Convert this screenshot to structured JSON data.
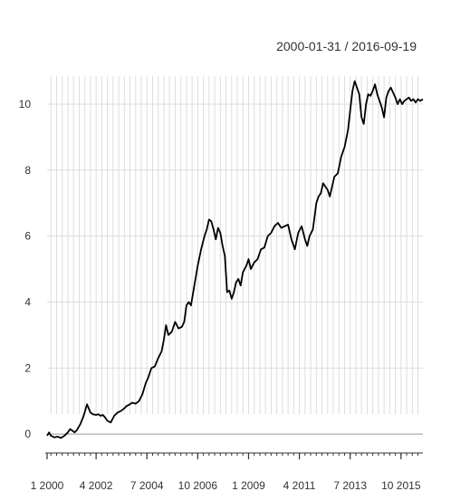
{
  "chart": {
    "date_range": "2000-01-31 / 2016-09-19"
  },
  "chart_data": {
    "type": "line",
    "title": "",
    "xlabel": "",
    "ylabel": "",
    "x_tick_labels": [
      "1 2000",
      "4 2002",
      "7 2004",
      "10 2006",
      "1 2009",
      "4 2011",
      "7 2013",
      "10 2015"
    ],
    "x_tick_positions": [
      2000.0,
      2002.25,
      2004.5,
      2006.75,
      2009.0,
      2011.25,
      2013.5,
      2015.75
    ],
    "y_ticks": [
      0,
      2,
      4,
      6,
      8,
      10
    ],
    "xlim": [
      2000.08,
      2016.72
    ],
    "ylim": [
      -0.3,
      10.85
    ],
    "grid": true,
    "series": [
      {
        "x": [
          2000.08,
          2000.17,
          2000.25,
          2000.4,
          2000.55,
          2000.7,
          2000.85,
          2001.0,
          2001.1,
          2001.2,
          2001.3,
          2001.4,
          2001.55,
          2001.7,
          2001.85,
          2002.0,
          2002.1,
          2002.25,
          2002.35,
          2002.45,
          2002.55,
          2002.65,
          2002.75,
          2002.9,
          2003.05,
          2003.2,
          2003.35,
          2003.5,
          2003.6,
          2003.7,
          2003.85,
          2004.0,
          2004.15,
          2004.3,
          2004.45,
          2004.55,
          2004.7,
          2004.85,
          2005.0,
          2005.15,
          2005.25,
          2005.35,
          2005.45,
          2005.6,
          2005.75,
          2005.9,
          2006.05,
          2006.15,
          2006.25,
          2006.35,
          2006.45,
          2006.6,
          2006.75,
          2006.9,
          2007.05,
          2007.15,
          2007.25,
          2007.35,
          2007.45,
          2007.55,
          2007.65,
          2007.75,
          2007.85,
          2007.95,
          2008.05,
          2008.15,
          2008.25,
          2008.35,
          2008.45,
          2008.55,
          2008.65,
          2008.75,
          2008.9,
          2009.0,
          2009.1,
          2009.25,
          2009.4,
          2009.55,
          2009.7,
          2009.85,
          2010.0,
          2010.15,
          2010.3,
          2010.45,
          2010.6,
          2010.75,
          2010.9,
          2011.05,
          2011.2,
          2011.35,
          2011.5,
          2011.6,
          2011.7,
          2011.85,
          2012.0,
          2012.1,
          2012.2,
          2012.3,
          2012.4,
          2012.5,
          2012.6,
          2012.7,
          2012.8,
          2012.95,
          2013.1,
          2013.25,
          2013.4,
          2013.5,
          2013.6,
          2013.7,
          2013.8,
          2013.9,
          2014.0,
          2014.1,
          2014.2,
          2014.3,
          2014.4,
          2014.5,
          2014.6,
          2014.7,
          2014.8,
          2014.9,
          2015.0,
          2015.1,
          2015.2,
          2015.3,
          2015.4,
          2015.5,
          2015.6,
          2015.7,
          2015.8,
          2015.9,
          2016.0,
          2016.1,
          2016.2,
          2016.3,
          2016.4,
          2016.5,
          2016.6,
          2016.72
        ],
        "values": [
          -0.05,
          0.05,
          -0.05,
          -0.1,
          -0.08,
          -0.12,
          -0.05,
          0.05,
          0.15,
          0.1,
          0.05,
          0.12,
          0.3,
          0.55,
          0.9,
          0.65,
          0.6,
          0.58,
          0.6,
          0.55,
          0.58,
          0.5,
          0.4,
          0.35,
          0.55,
          0.65,
          0.7,
          0.78,
          0.85,
          0.88,
          0.95,
          0.92,
          1.0,
          1.2,
          1.55,
          1.7,
          2.0,
          2.05,
          2.3,
          2.5,
          2.85,
          3.3,
          3.0,
          3.1,
          3.4,
          3.2,
          3.25,
          3.4,
          3.9,
          4.0,
          3.9,
          4.5,
          5.1,
          5.6,
          6.0,
          6.2,
          6.5,
          6.45,
          6.2,
          5.9,
          6.25,
          6.1,
          5.7,
          5.4,
          4.3,
          4.35,
          4.1,
          4.3,
          4.6,
          4.7,
          4.5,
          4.9,
          5.1,
          5.3,
          5.0,
          5.2,
          5.3,
          5.6,
          5.65,
          6.0,
          6.1,
          6.3,
          6.4,
          6.25,
          6.3,
          6.35,
          5.9,
          5.6,
          6.1,
          6.3,
          5.9,
          5.7,
          6.0,
          6.2,
          7.0,
          7.2,
          7.3,
          7.6,
          7.5,
          7.4,
          7.2,
          7.5,
          7.8,
          7.9,
          8.4,
          8.7,
          9.2,
          9.8,
          10.4,
          10.7,
          10.5,
          10.3,
          9.6,
          9.4,
          10.0,
          10.3,
          10.25,
          10.4,
          10.6,
          10.3,
          10.1,
          9.9,
          9.6,
          10.2,
          10.4,
          10.5,
          10.35,
          10.2,
          10.0,
          10.15,
          10.0,
          10.1,
          10.15,
          10.2,
          10.1,
          10.15,
          10.05,
          10.15,
          10.1,
          10.15
        ]
      }
    ]
  }
}
